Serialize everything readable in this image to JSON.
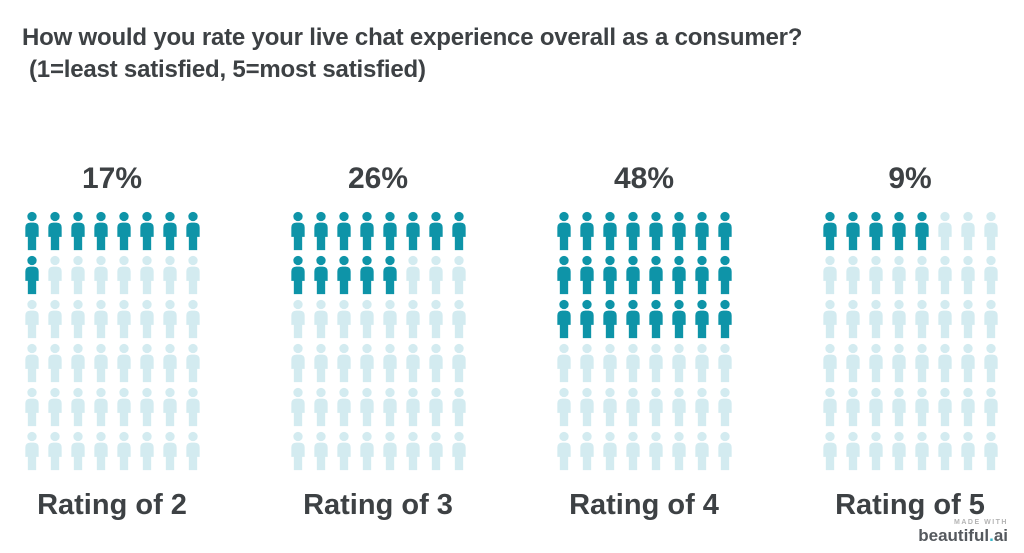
{
  "title": {
    "line1": "How would you rate your live chat experience overall as a consumer?",
    "line2": "(1=least satisfied, 5=most satisfied)"
  },
  "chart_data": {
    "type": "pictogram",
    "title": "How would you rate your live chat experience overall as a consumer? (1=least satisfied, 5=most satisfied)",
    "categories": [
      "Rating of 2",
      "Rating of 3",
      "Rating of 4",
      "Rating of 5"
    ],
    "values": [
      17,
      26,
      48,
      9
    ],
    "value_labels": [
      "17%",
      "26%",
      "48%",
      "9%"
    ],
    "percent_per_icon": 2,
    "filled_icons": [
      9,
      13,
      24,
      5
    ],
    "grid": {
      "columns": 8,
      "rows": 6,
      "icons_per_group": 48
    },
    "fill_order": "left-to-right, top-to-bottom",
    "legend": "none",
    "colors": {
      "filled": "#0e94a8",
      "empty": "#d3ebf0",
      "text": "#3d4144"
    }
  },
  "footer": {
    "made_with": "MADE WITH",
    "brand_parts": [
      "beautiful",
      ".",
      "ai"
    ],
    "brand_dot_color": "#35b5c8"
  }
}
